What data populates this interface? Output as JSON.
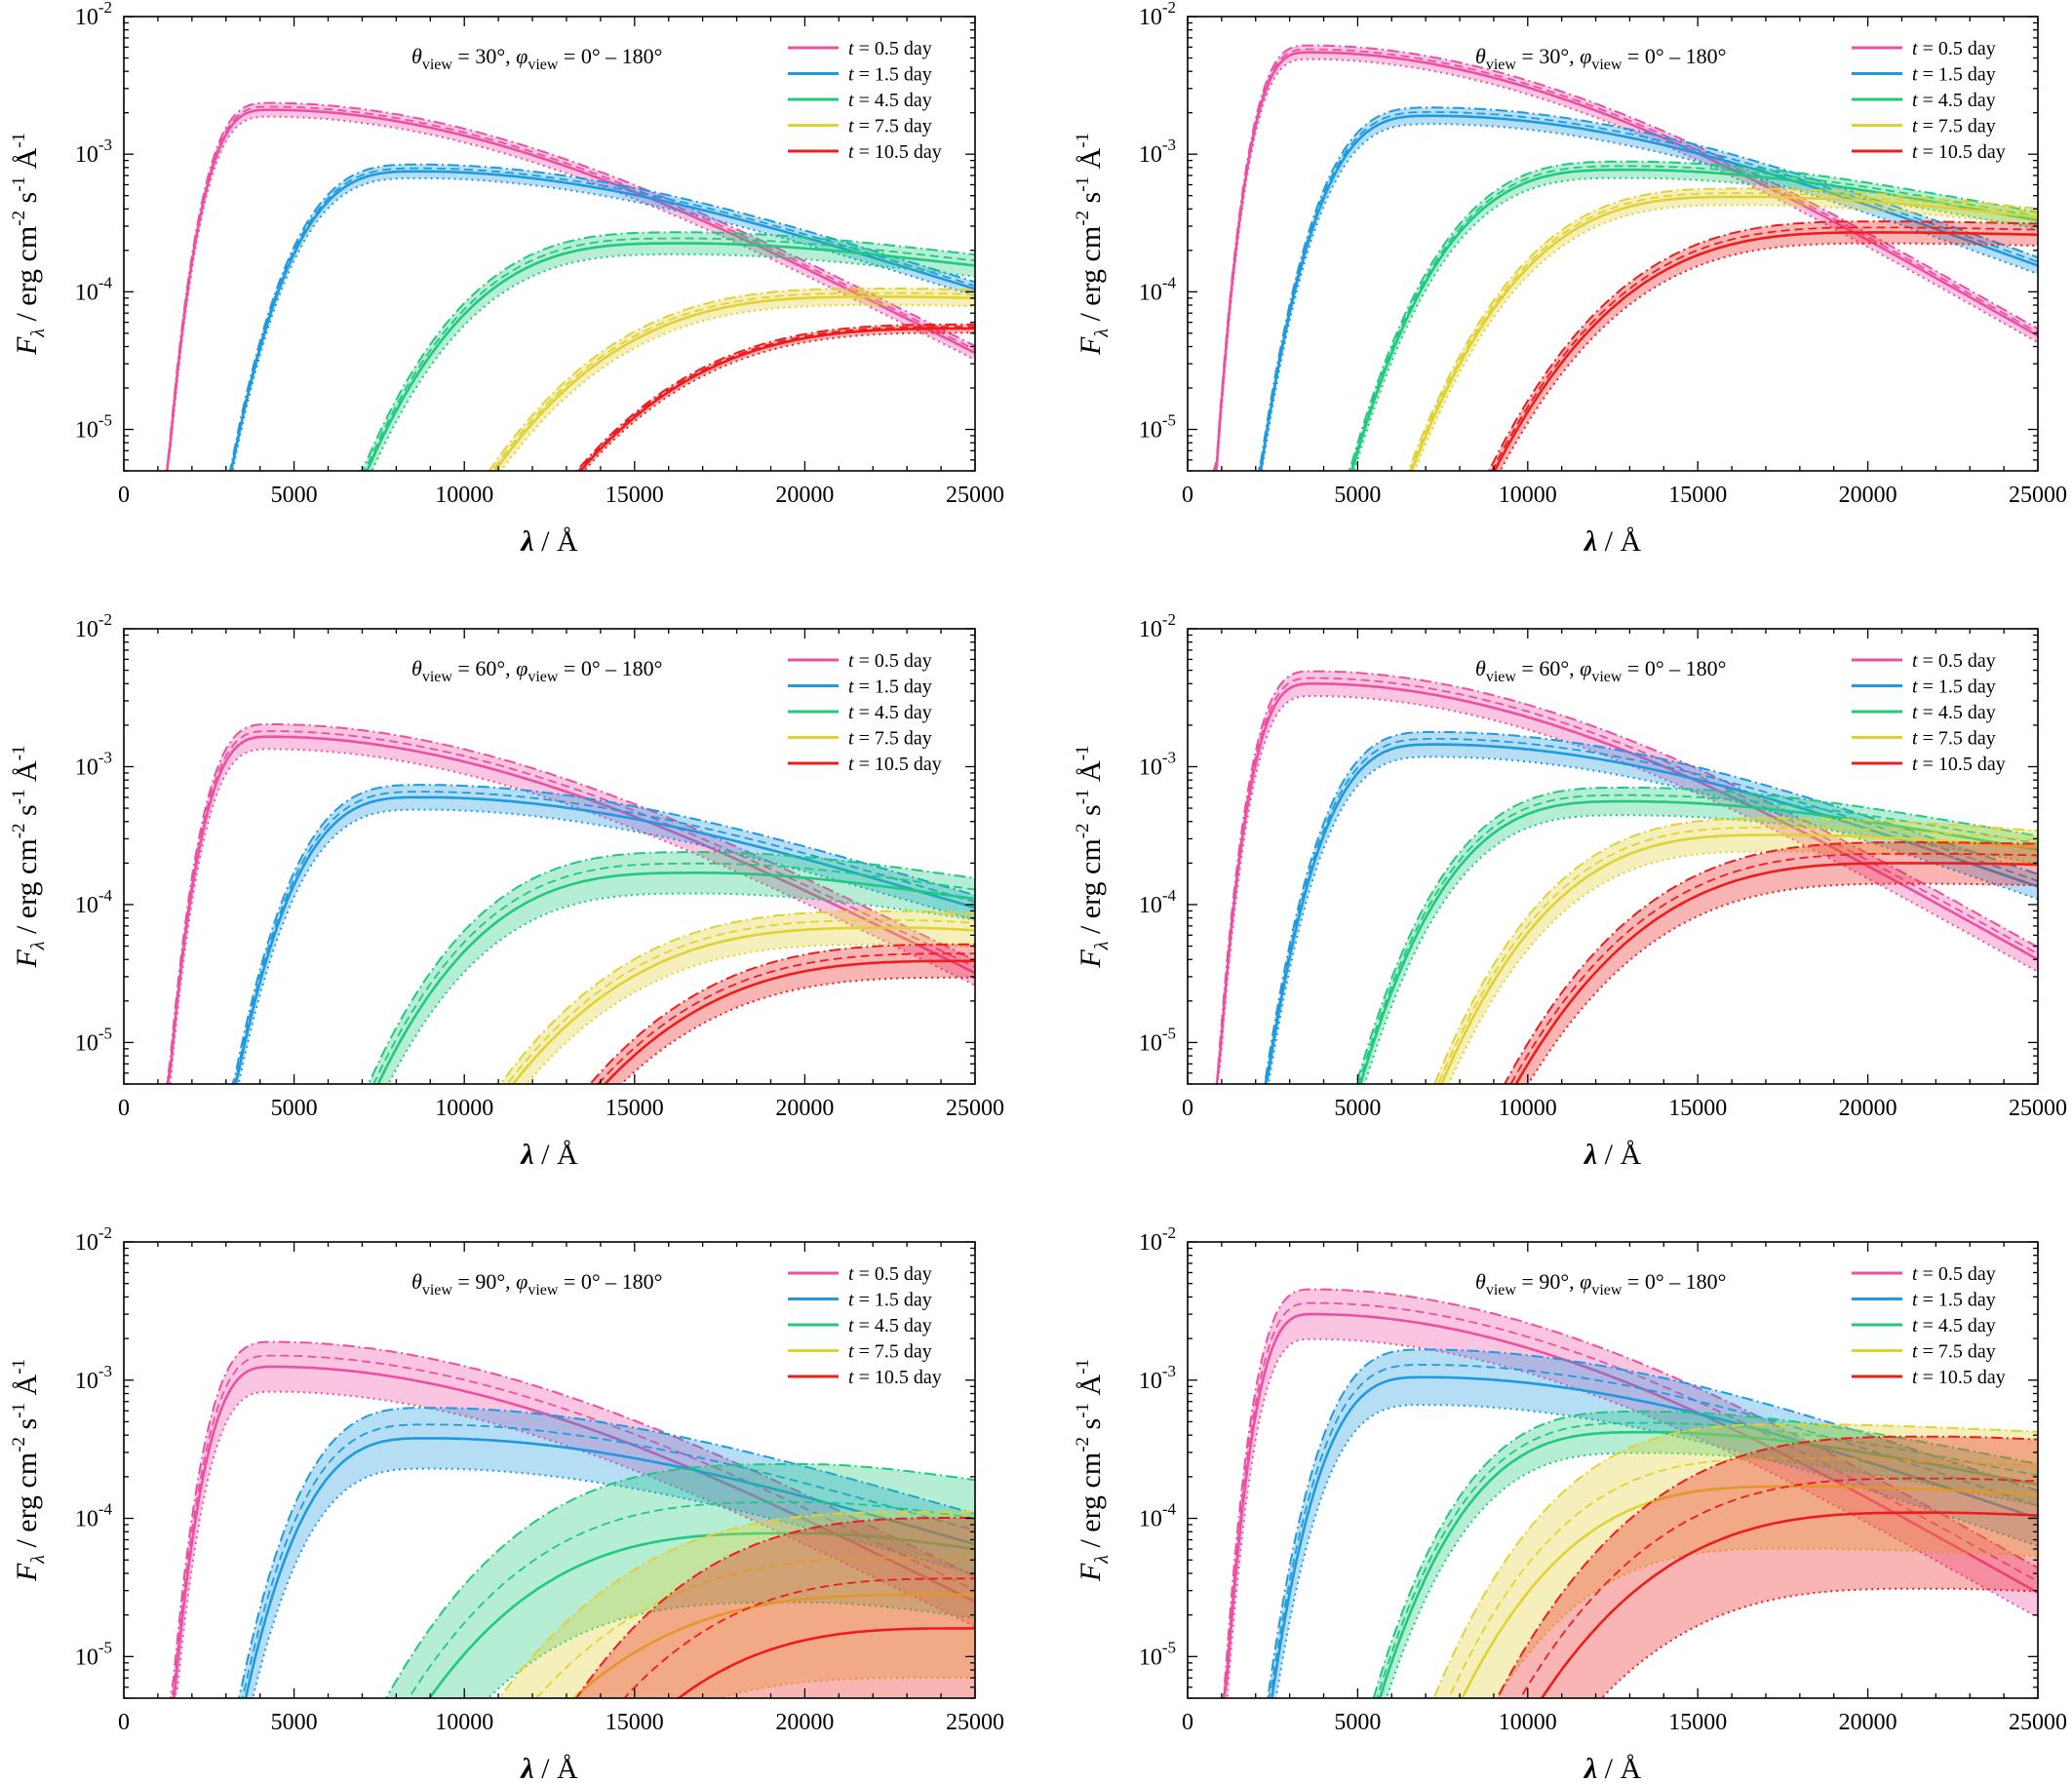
{
  "figure": {
    "colors": {
      "t0.5": "#ee4fa3",
      "t1.5": "#1e9ae0",
      "t4.5": "#1fc97e",
      "t7.5": "#e0d232",
      "t10.5": "#ee1c1c",
      "axis": "#000000",
      "background": "#ffffff"
    },
    "legend": [
      {
        "key": "t0.5",
        "var": "t",
        "text": " = 0.5 day"
      },
      {
        "key": "t1.5",
        "var": "t",
        "text": " = 1.5 day"
      },
      {
        "key": "t4.5",
        "var": "t",
        "text": " = 4.5 day"
      },
      {
        "key": "t7.5",
        "var": "t",
        "text": " = 7.5 day"
      },
      {
        "key": "t10.5",
        "var": "t",
        "text": " = 10.5 day"
      }
    ],
    "x_tick_labels": [
      "0",
      "5000",
      "10000",
      "15000",
      "20000",
      "25000"
    ],
    "y_tick_bases": [
      "10",
      "10",
      "10",
      "10"
    ],
    "y_tick_exponents": [
      "-5",
      "-4",
      "-3",
      "-2"
    ],
    "xlabel": {
      "symbol": "λ",
      "rest": " / Å"
    },
    "ylabel": {
      "symbol": "F",
      "sub": "λ",
      "rest": " / erg cm",
      "sup1": "-2",
      "mid": " s",
      "sup2": "-1",
      "end": " Å",
      "sup3": "-1"
    },
    "annotation": {
      "theta": "θ",
      "phi": "φ",
      "sub": "view",
      "p1": " = ",
      "p2": ", ",
      "p3": " = 0° – 180°"
    }
  },
  "chart_data": [
    {
      "type": "line",
      "title": "θ_view = 30°, φ_view = 0° – 180° (left)",
      "theta_value": "30°",
      "xlabel": "λ / Å",
      "ylabel": "F_λ / erg cm^-2 s^-1 Å^-1",
      "xlim": [
        0,
        25000
      ],
      "ylim": [
        5e-06,
        0.01
      ],
      "yscale": "log",
      "series": [
        {
          "key": "t0.5",
          "name": "t = 0.5 day",
          "cutoff": 1100,
          "peak_x": 4300,
          "peak_y": 0.0021,
          "end_y": 3.6e-05,
          "spread": 0.05
        },
        {
          "key": "t1.5",
          "name": "t = 1.5 day",
          "cutoff": 2450,
          "peak_x": 8700,
          "peak_y": 0.00075,
          "end_y": 0.000105,
          "spread": 0.05
        },
        {
          "key": "t4.5",
          "name": "t = 4.5 day",
          "cutoff": 5000,
          "peak_x": 16500,
          "peak_y": 0.000225,
          "end_y": 0.000155,
          "spread": 0.08
        },
        {
          "key": "t7.5",
          "name": "t = 7.5 day",
          "cutoff": 7000,
          "peak_x": 22500,
          "peak_y": 9.2e-05,
          "end_y": 9e-05,
          "spread": 0.06
        },
        {
          "key": "t10.5",
          "name": "t = 10.5 day",
          "cutoff": 8500,
          "peak_x": 25000,
          "peak_y": 5.4e-05,
          "end_y": 5.4e-05,
          "spread": 0.03
        }
      ]
    },
    {
      "type": "line",
      "title": "θ_view = 30°, φ_view = 0° – 180° (right)",
      "theta_value": "30°",
      "xlabel": "λ / Å",
      "ylabel": "F_λ / erg cm^-2 s^-1 Å^-1",
      "xlim": [
        0,
        25000
      ],
      "ylim": [
        5e-06,
        0.01
      ],
      "yscale": "log",
      "series": [
        {
          "key": "t0.5",
          "name": "t = 0.5 day",
          "cutoff": 800,
          "peak_x": 3600,
          "peak_y": 0.0055,
          "end_y": 4.8e-05,
          "spread": 0.05
        },
        {
          "key": "t1.5",
          "name": "t = 1.5 day",
          "cutoff": 1800,
          "peak_x": 7200,
          "peak_y": 0.0019,
          "end_y": 0.000155,
          "spread": 0.06
        },
        {
          "key": "t4.5",
          "name": "t = 4.5 day",
          "cutoff": 3800,
          "peak_x": 13000,
          "peak_y": 0.00077,
          "end_y": 0.00033,
          "spread": 0.06
        },
        {
          "key": "t7.5",
          "name": "t = 7.5 day",
          "cutoff": 5000,
          "peak_x": 16500,
          "peak_y": 0.00049,
          "end_y": 0.00035,
          "spread": 0.06
        },
        {
          "key": "t10.5",
          "name": "t = 10.5 day",
          "cutoff": 6600,
          "peak_x": 20500,
          "peak_y": 0.00027,
          "end_y": 0.00026,
          "spread": 0.08
        }
      ]
    },
    {
      "type": "line",
      "title": "θ_view = 60°, φ_view = 0° – 180° (left)",
      "theta_value": "60°",
      "xlabel": "λ / Å",
      "ylabel": "F_λ / erg cm^-2 s^-1 Å^-1",
      "xlim": [
        0,
        25000
      ],
      "ylim": [
        5e-06,
        0.01
      ],
      "yscale": "log",
      "series": [
        {
          "key": "t0.5",
          "name": "t = 0.5 day",
          "cutoff": 1100,
          "peak_x": 4300,
          "peak_y": 0.00165,
          "end_y": 3.2e-05,
          "spread": 0.09
        },
        {
          "key": "t1.5",
          "name": "t = 1.5 day",
          "cutoff": 2500,
          "peak_x": 8800,
          "peak_y": 0.0006,
          "end_y": 9.5e-05,
          "spread": 0.09
        },
        {
          "key": "t4.5",
          "name": "t = 4.5 day",
          "cutoff": 5000,
          "peak_x": 17000,
          "peak_y": 0.00017,
          "end_y": 0.00011,
          "spread": 0.15
        },
        {
          "key": "t7.5",
          "name": "t = 7.5 day",
          "cutoff": 7000,
          "peak_x": 23000,
          "peak_y": 6.8e-05,
          "end_y": 6.5e-05,
          "spread": 0.12
        },
        {
          "key": "t10.5",
          "name": "t = 10.5 day",
          "cutoff": 8800,
          "peak_x": 25000,
          "peak_y": 3.9e-05,
          "end_y": 3.9e-05,
          "spread": 0.12
        }
      ]
    },
    {
      "type": "line",
      "title": "θ_view = 60°, φ_view = 0° – 180° (right)",
      "theta_value": "60°",
      "xlabel": "λ / Å",
      "ylabel": "F_λ / erg cm^-2 s^-1 Å^-1",
      "xlim": [
        0,
        25000
      ],
      "ylim": [
        5e-06,
        0.01
      ],
      "yscale": "log",
      "series": [
        {
          "key": "t0.5",
          "name": "t = 0.5 day",
          "cutoff": 800,
          "peak_x": 3700,
          "peak_y": 0.004,
          "end_y": 4e-05,
          "spread": 0.09
        },
        {
          "key": "t1.5",
          "name": "t = 1.5 day",
          "cutoff": 1900,
          "peak_x": 7300,
          "peak_y": 0.00145,
          "end_y": 0.000135,
          "spread": 0.09
        },
        {
          "key": "t4.5",
          "name": "t = 4.5 day",
          "cutoff": 3900,
          "peak_x": 13000,
          "peak_y": 0.00056,
          "end_y": 0.00025,
          "spread": 0.1
        },
        {
          "key": "t7.5",
          "name": "t = 7.5 day",
          "cutoff": 5500,
          "peak_x": 17500,
          "peak_y": 0.00032,
          "end_y": 0.00026,
          "spread": 0.12
        },
        {
          "key": "t10.5",
          "name": "t = 10.5 day",
          "cutoff": 6800,
          "peak_x": 21500,
          "peak_y": 0.0002,
          "end_y": 0.000195,
          "spread": 0.15
        }
      ]
    },
    {
      "type": "line",
      "title": "θ_view = 90°, φ_view = 0° – 180° (left)",
      "theta_value": "90°",
      "xlabel": "λ / Å",
      "ylabel": "F_λ / erg cm^-2 s^-1 Å^-1",
      "xlim": [
        0,
        25000
      ],
      "ylim": [
        5e-06,
        0.01
      ],
      "yscale": "log",
      "series": [
        {
          "key": "t0.5",
          "name": "t = 0.5 day",
          "cutoff": 1200,
          "peak_x": 4400,
          "peak_y": 0.00125,
          "end_y": 2.5e-05,
          "spread": 0.18
        },
        {
          "key": "t1.5",
          "name": "t = 1.5 day",
          "cutoff": 2600,
          "peak_x": 9000,
          "peak_y": 0.00038,
          "end_y": 6.5e-05,
          "spread": 0.22
        },
        {
          "key": "t4.5",
          "name": "t = 4.5 day",
          "cutoff": 5000,
          "peak_x": 20000,
          "peak_y": 7.8e-05,
          "end_y": 6e-05,
          "spread": 0.5
        },
        {
          "key": "t7.5",
          "name": "t = 7.5 day",
          "cutoff": 7000,
          "peak_x": 24000,
          "peak_y": 2.8e-05,
          "end_y": 2.8e-05,
          "spread": 0.6
        },
        {
          "key": "t10.5",
          "name": "t = 10.5 day",
          "cutoff": 9500,
          "peak_x": 25000,
          "peak_y": 1.6e-05,
          "end_y": 1.6e-05,
          "spread": 0.8
        }
      ]
    },
    {
      "type": "line",
      "title": "θ_view = 90°, φ_view = 0° – 180° (right)",
      "theta_value": "90°",
      "xlabel": "λ / Å",
      "ylabel": "F_λ / erg cm^-2 s^-1 Å^-1",
      "xlim": [
        0,
        25000
      ],
      "ylim": [
        5e-06,
        0.01
      ],
      "yscale": "log",
      "series": [
        {
          "key": "t0.5",
          "name": "t = 0.5 day",
          "cutoff": 1000,
          "peak_x": 3700,
          "peak_y": 0.003,
          "end_y": 2.9e-05,
          "spread": 0.18
        },
        {
          "key": "t1.5",
          "name": "t = 1.5 day",
          "cutoff": 2000,
          "peak_x": 7000,
          "peak_y": 0.00105,
          "end_y": 0.0001,
          "spread": 0.2
        },
        {
          "key": "t4.5",
          "name": "t = 4.5 day",
          "cutoff": 4300,
          "peak_x": 13500,
          "peak_y": 0.00042,
          "end_y": 0.000175,
          "spread": 0.15
        },
        {
          "key": "t7.5",
          "name": "t = 7.5 day",
          "cutoff": 5500,
          "peak_x": 18000,
          "peak_y": 0.00017,
          "end_y": 0.00015,
          "spread": 0.45
        },
        {
          "key": "t10.5",
          "name": "t = 10.5 day",
          "cutoff": 6800,
          "peak_x": 22000,
          "peak_y": 0.00011,
          "end_y": 0.000105,
          "spread": 0.55
        }
      ]
    }
  ]
}
